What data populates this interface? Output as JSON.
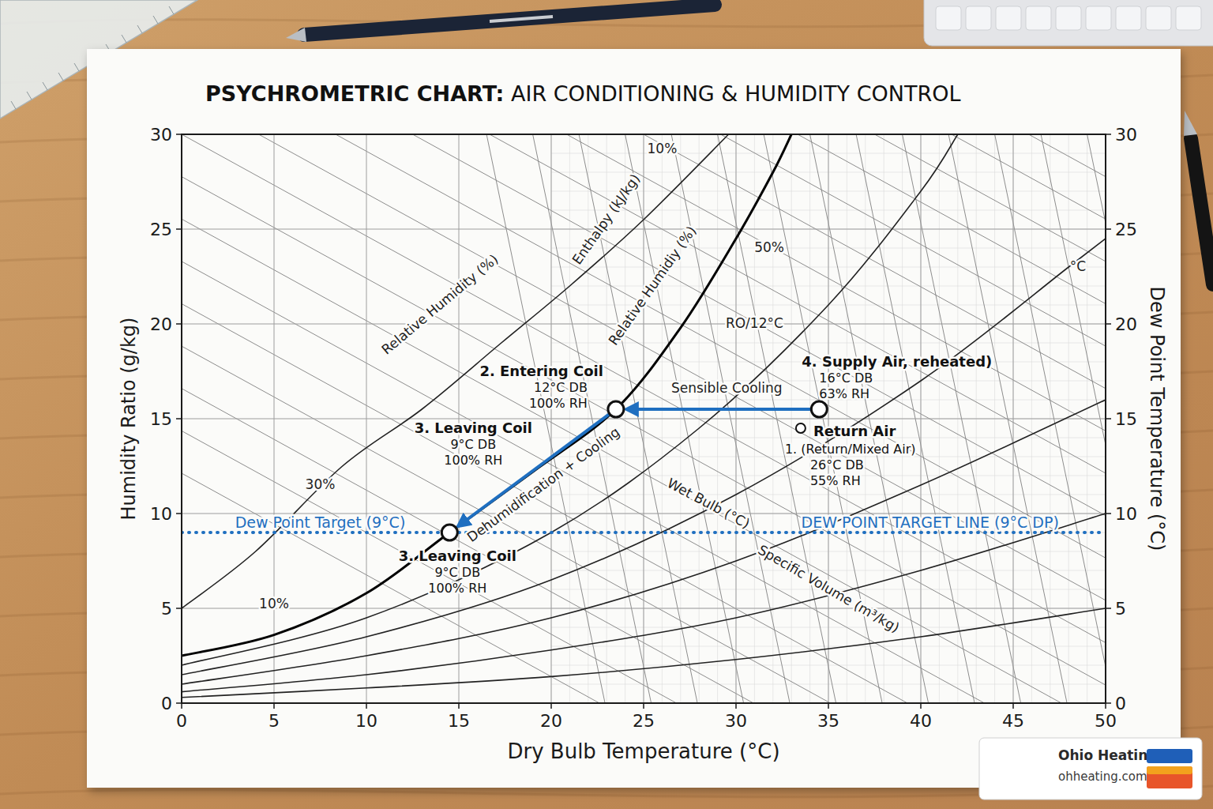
{
  "chart_data": {
    "type": "psychrometric",
    "title": "PSYCHROMETRIC CHART: AIR CONDITIONING & HUMIDITY CONTROL",
    "x_label": "Dry Bulb Temperature (°C)",
    "y_label": "Humidity Ratio (g/kg)",
    "y2_label": "Dew Point Temperature (°C)",
    "xlim": [
      0,
      50
    ],
    "xticks": [
      0,
      5,
      10,
      15,
      20,
      25,
      30,
      35,
      40,
      45,
      50
    ],
    "ylim": [
      0,
      30
    ],
    "yticks": [
      0,
      5,
      10,
      15,
      20,
      25,
      30
    ],
    "y2lim": [
      0,
      30
    ],
    "y2ticks": [
      0,
      5,
      10,
      15,
      20,
      25,
      30
    ],
    "grid": true,
    "series": [
      {
        "type": "line",
        "color": "#000000",
        "line_style": "solid",
        "x": [
          0,
          5,
          10,
          14.5,
          19,
          23.5,
          27,
          30,
          32,
          33
        ],
        "values": [
          2.5,
          3.6,
          5.8,
          9,
          12.2,
          15.5,
          19.8,
          24.5,
          28,
          30
        ]
      },
      {
        "type": "line",
        "color": "#222222",
        "line_style": "solid",
        "x": [
          0,
          4,
          8.7,
          13,
          17.3,
          21,
          25,
          29.6
        ],
        "values": [
          5,
          8,
          12.5,
          15.5,
          19,
          22,
          25.5,
          30
        ]
      },
      {
        "type": "line",
        "color": "#222222",
        "line_style": "solid",
        "x": [
          0,
          10,
          20,
          28,
          35,
          40,
          42
        ],
        "values": [
          2,
          4.5,
          9,
          14.5,
          21,
          27,
          30
        ]
      },
      {
        "type": "line",
        "color": "#222222",
        "line_style": "solid",
        "x": [
          0,
          10,
          20,
          30,
          40,
          48,
          50
        ],
        "values": [
          1.5,
          3.5,
          6.5,
          11,
          17,
          23,
          24.5
        ]
      },
      {
        "type": "line",
        "color": "#222222",
        "line_style": "solid",
        "x": [
          0,
          10,
          20,
          30,
          40,
          50
        ],
        "values": [
          1,
          2.5,
          4.5,
          7.5,
          11.5,
          16
        ]
      },
      {
        "type": "line",
        "color": "#222222",
        "line_style": "solid",
        "x": [
          0,
          10,
          20,
          30,
          40,
          50
        ],
        "values": [
          0.6,
          1.5,
          2.8,
          4.5,
          7,
          10
        ]
      },
      {
        "type": "line",
        "color": "#222222",
        "line_style": "solid",
        "x": [
          0,
          10,
          20,
          30,
          40,
          50
        ],
        "values": [
          0.3,
          0.8,
          1.4,
          2.3,
          3.5,
          5
        ]
      }
    ],
    "dew_point_target": {
      "value": 9,
      "axis": "y2",
      "color": "#1f6fc0",
      "line_style": "dotted"
    },
    "process": [
      {
        "labels": [
          "4. Supply Air, reheated)",
          "16°C DB",
          "63% RH"
        ],
        "x": 34.5,
        "y": 15.5
      },
      {
        "labels": [
          "2. Entering Coil",
          "12°C DB",
          "100% RH"
        ],
        "x": 23.5,
        "y": 15.5
      },
      {
        "labels": [
          "3. Leaving Coil",
          "9°C DB",
          "100% RH"
        ],
        "labels_upper": [
          "3. Leaving Coil",
          "9°C DB",
          "100% RH"
        ],
        "x": 14.5,
        "y": 9
      }
    ],
    "process_color": "#1f6fc0",
    "return_air": {
      "name": "Return Air",
      "labels": [
        "1. (Return/Mixed Air)",
        "26°C DB",
        "55% RH"
      ],
      "x": 33.5,
      "y": 14.5
    },
    "annotations": [
      {
        "text": "10%",
        "x": 26,
        "y": 29.2
      },
      {
        "text": "Enthalpy (kJ/kg)",
        "x": 23,
        "y": 25.5
      },
      {
        "text": "50%",
        "x": 31.8,
        "y": 24
      },
      {
        "text": "Relative Humidity (%)",
        "x": 14,
        "y": 21
      },
      {
        "text": "Relative Humidiy (%)",
        "x": 25.5,
        "y": 22
      },
      {
        "text": "RO/12°C",
        "x": 31,
        "y": 20
      },
      {
        "text": "°C",
        "x": 48.5,
        "y": 23
      },
      {
        "text": "Sensible Cooling",
        "x": 29.5,
        "y": 16.6
      },
      {
        "text": "Dehumidification + Cooling",
        "x": 19.6,
        "y": 11.5
      },
      {
        "text": "30%",
        "x": 7.5,
        "y": 11.5
      },
      {
        "text": "Wet Bulb (°C)",
        "x": 28.5,
        "y": 10.5
      },
      {
        "text": "DEW POINT TARGET LINE (9°C DP)",
        "x": 40.5,
        "y": 9.5,
        "color": "#1f6fc0"
      },
      {
        "text": "Dew Point Target (9°C)",
        "x": 7.5,
        "y": 9.5,
        "color": "#1f6fc0"
      },
      {
        "text": "Specific Volume (m³/kg)",
        "x": 35,
        "y": 6
      },
      {
        "text": "10%",
        "x": 5,
        "y": 5.2
      }
    ]
  },
  "brand": {
    "name": "Ohio Heating",
    "url": "ohheating.com"
  }
}
